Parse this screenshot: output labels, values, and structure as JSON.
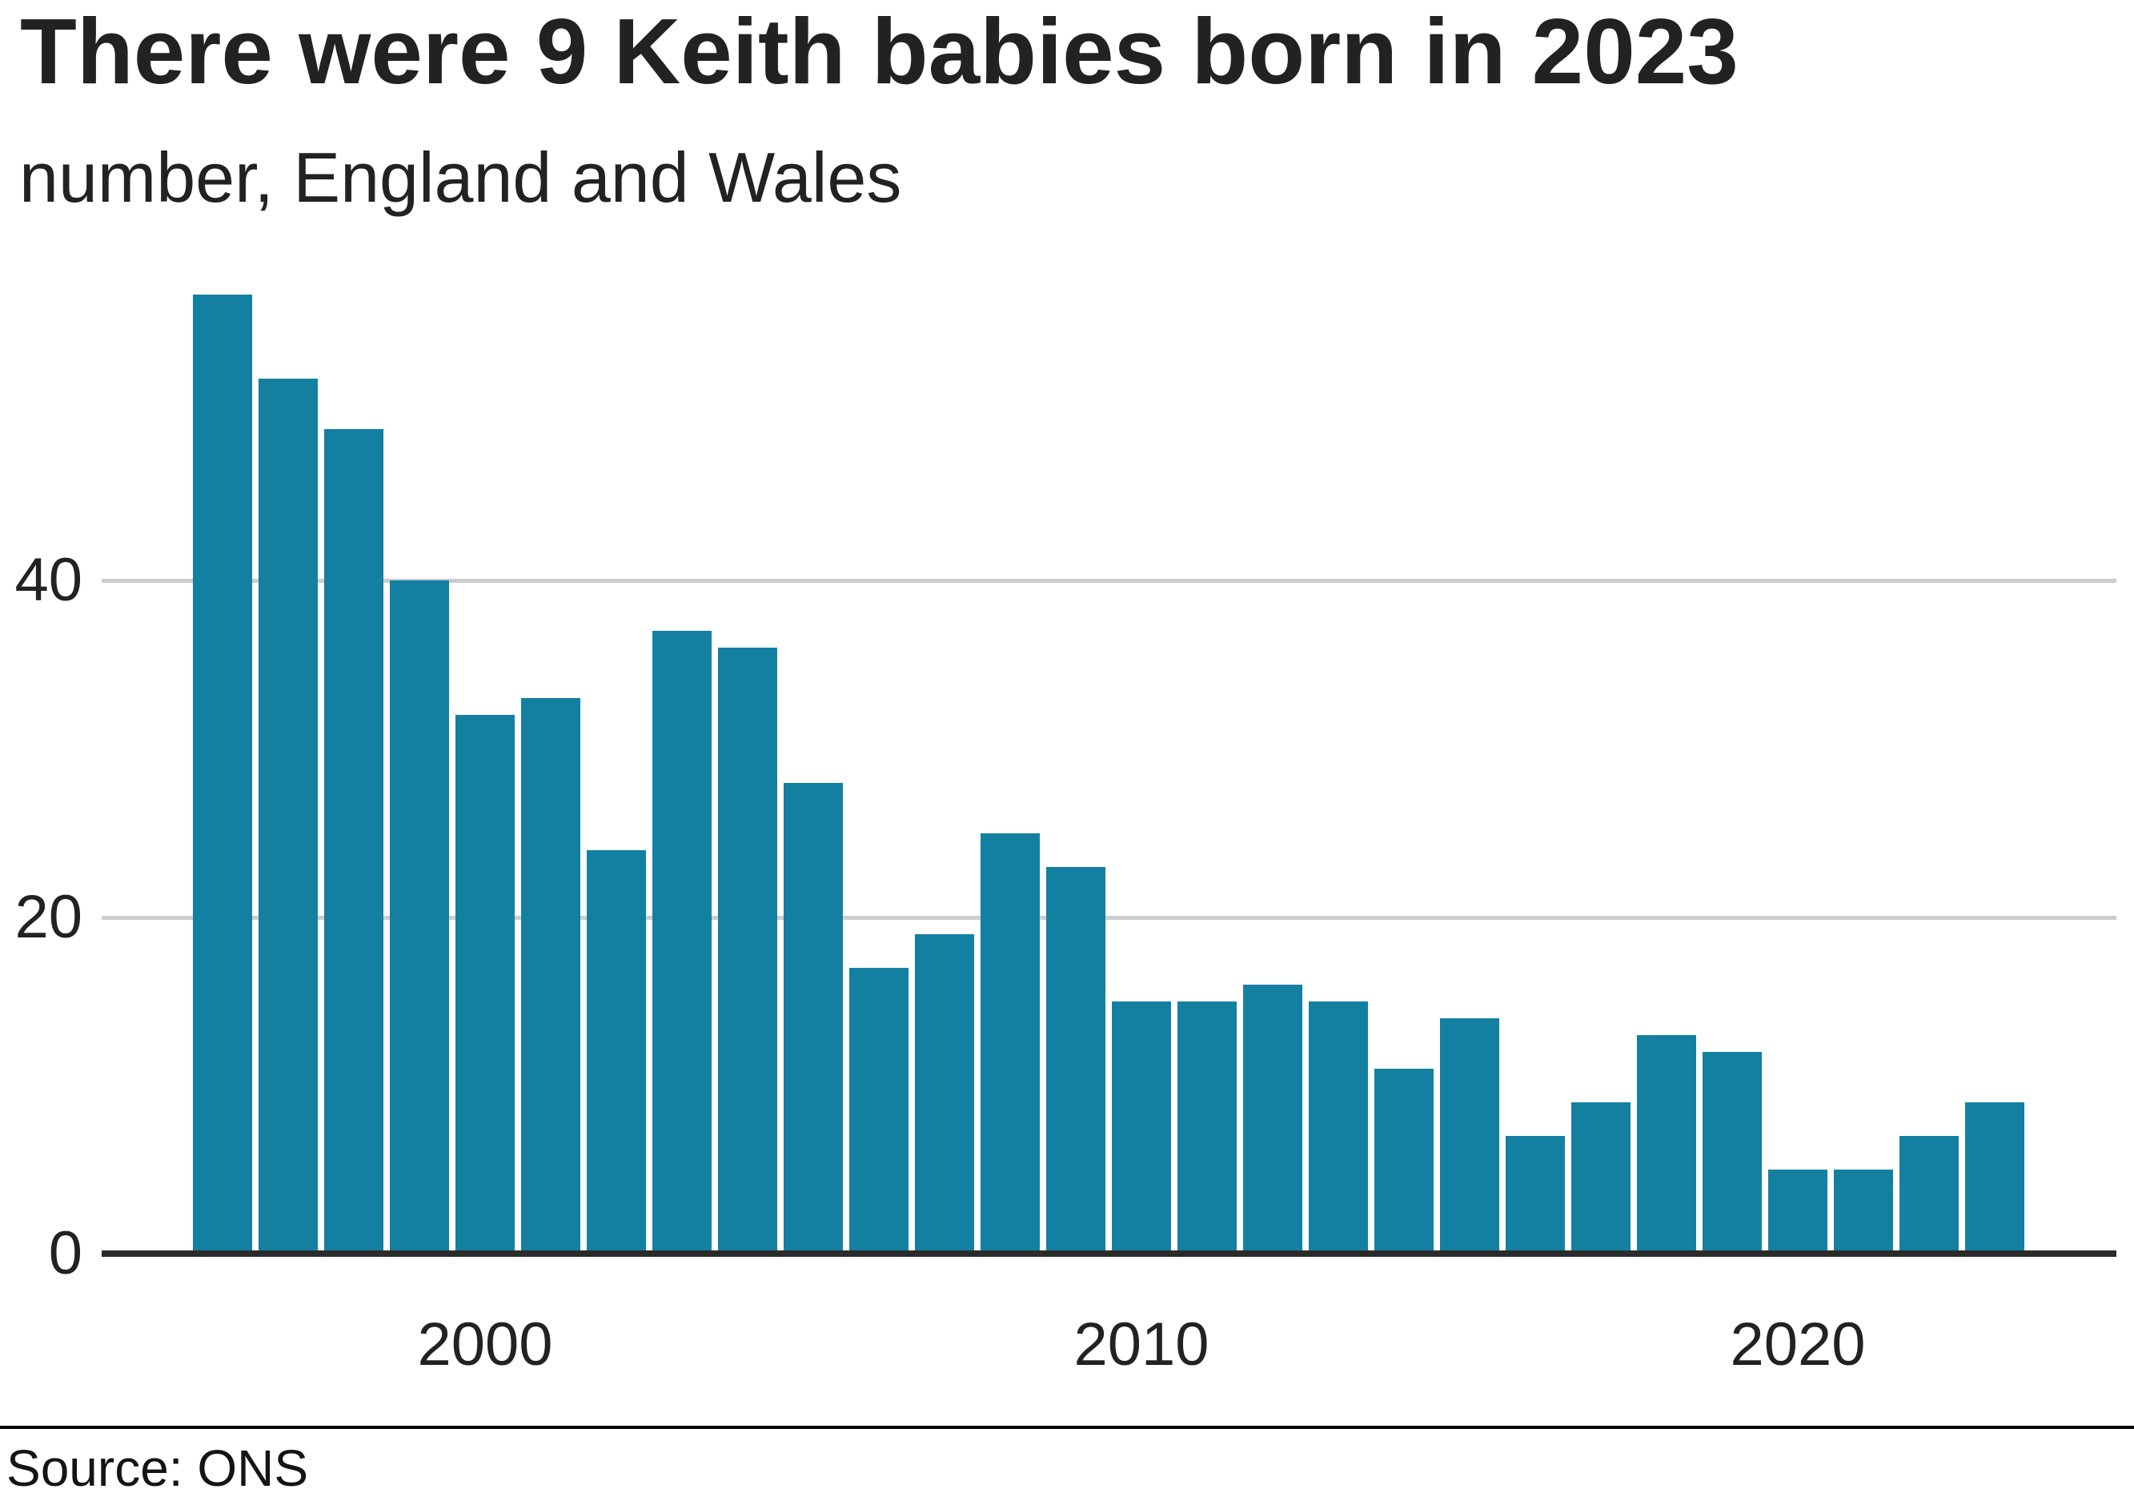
{
  "header": {
    "title": "There were 9 Keith babies born in 2023",
    "subtitle": "number, England and Wales"
  },
  "footer": {
    "source_label": "Source: ONS"
  },
  "chart_data": {
    "type": "bar",
    "title": "There were 9 Keith babies born in 2023",
    "subtitle": "number, England and Wales",
    "x": [
      1996,
      1997,
      1998,
      1999,
      2000,
      2001,
      2002,
      2003,
      2004,
      2005,
      2006,
      2007,
      2008,
      2009,
      2010,
      2011,
      2012,
      2013,
      2014,
      2015,
      2016,
      2017,
      2018,
      2019,
      2020,
      2021,
      2022,
      2023
    ],
    "values": [
      57,
      52,
      49,
      40,
      32,
      33,
      24,
      37,
      36,
      28,
      17,
      19,
      25,
      23,
      15,
      15,
      16,
      15,
      11,
      14,
      7,
      9,
      13,
      12,
      5,
      5,
      7,
      9
    ],
    "xlabel": "",
    "ylabel": "",
    "xticks": [
      2000,
      2010,
      2020
    ],
    "yticks": [
      0,
      20,
      40
    ],
    "ylim": [
      0,
      60
    ],
    "grid": "horizontal",
    "legend": "none",
    "bar_color": "#1380a1",
    "gridline_color": "#cdcdcd",
    "axis_color": "#2b2b2b",
    "source": "Source: ONS"
  }
}
